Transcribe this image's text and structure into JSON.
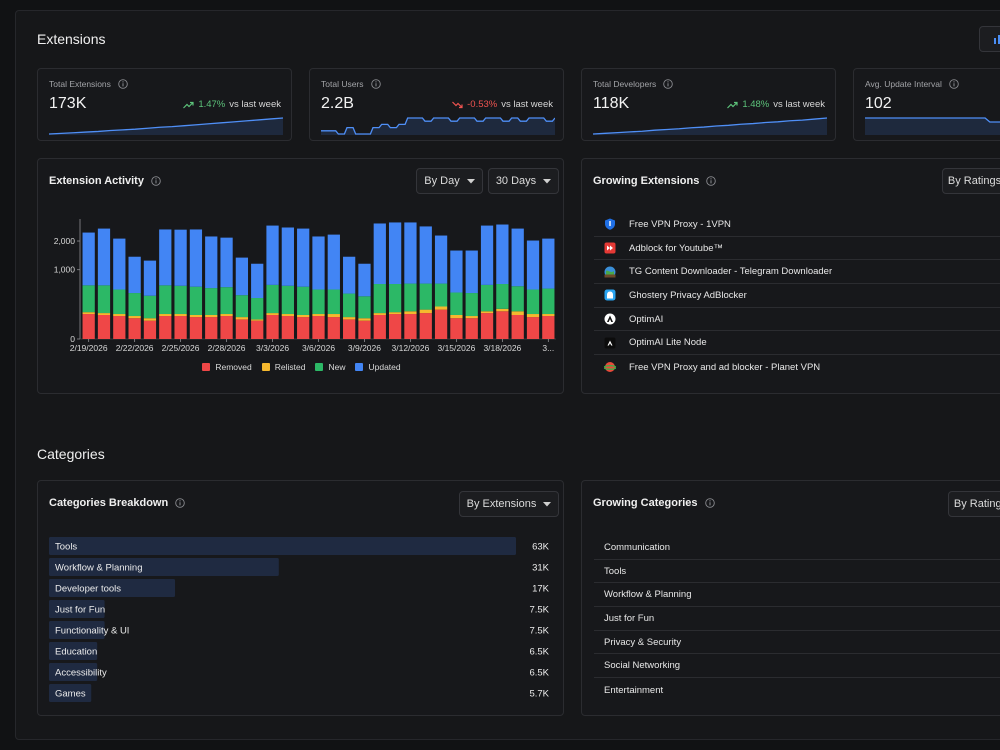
{
  "extensions": {
    "title": "Extensions",
    "stats": [
      {
        "label": "Total Extensions",
        "value": "173K",
        "change": "1.47%",
        "comparison": "vs last week",
        "trend": "up",
        "spark": [
          168.2,
          168.4,
          168.6,
          168.8,
          169.0,
          169.3,
          169.5,
          169.7,
          170.0,
          170.3,
          170.5,
          170.8,
          171.1,
          171.4,
          171.7,
          172.0,
          172.3,
          172.6,
          172.9,
          173.2
        ]
      },
      {
        "label": "Total Users",
        "value": "2.2B",
        "change": "-0.53%",
        "comparison": "vs last week",
        "trend": "down",
        "spark": [
          2.14,
          2.14,
          2.13,
          2.15,
          2.13,
          2.13,
          2.15,
          2.16,
          2.15,
          2.16,
          2.18,
          2.18,
          2.17,
          2.18,
          2.18,
          2.17,
          2.18,
          2.18,
          2.17,
          2.18,
          2.18,
          2.17,
          2.18,
          2.17,
          2.18,
          2.18,
          2.17,
          2.18
        ]
      },
      {
        "label": "Total Developers",
        "value": "118K",
        "change": "1.48%",
        "comparison": "vs last week",
        "trend": "up",
        "spark": [
          113.6,
          113.8,
          114.0,
          114.2,
          114.4,
          114.7,
          114.9,
          115.1,
          115.4,
          115.6,
          115.9,
          116.1,
          116.4,
          116.6,
          116.9,
          117.1,
          117.4,
          117.6,
          117.9,
          118.2
        ]
      },
      {
        "label": "Avg. Update Interval",
        "value": "102",
        "spark": [
          102,
          102,
          102,
          102,
          102,
          102,
          102,
          102,
          101,
          101,
          101.5,
          100,
          100,
          99,
          99.5,
          98
        ]
      }
    ],
    "activity": {
      "title": "Extension Activity",
      "controls": [
        "By Day",
        "30 Days"
      ],
      "chart": {
        "type": "bar",
        "stacked": true,
        "yscale": "sqrt",
        "ylim": [
          0,
          3000
        ],
        "yticks": [
          0,
          {
            "value": 1000,
            "label": "1,000"
          },
          {
            "value": 2000,
            "label": "2,000"
          }
        ],
        "categories": [
          "2/19/2026",
          null,
          null,
          "2/22/2026",
          null,
          null,
          "2/25/2026",
          null,
          null,
          "2/28/2026",
          null,
          null,
          "3/3/2026",
          null,
          null,
          "3/6/2026",
          null,
          null,
          "3/9/2026",
          null,
          null,
          "3/12/2026",
          null,
          null,
          "3/15/2026",
          null,
          null,
          "3/18/2026",
          null,
          null,
          "3..."
        ],
        "series": [
          {
            "name": "Removed",
            "color": "#ef4747",
            "values": [
              130,
              120,
              110,
              90,
              70,
              110,
              110,
              100,
              100,
              110,
              80,
              70,
              120,
              110,
              100,
              110,
              100,
              80,
              70,
              120,
              130,
              130,
              140,
              180,
              90,
              90,
              140,
              160,
              120,
              100,
              110
            ]
          },
          {
            "name": "Relisted",
            "color": "#f5b82e",
            "values": [
              20,
              20,
              20,
              20,
              20,
              20,
              20,
              20,
              20,
              20,
              20,
              10,
              20,
              20,
              20,
              20,
              30,
              20,
              20,
              20,
              20,
              30,
              40,
              40,
              30,
              20,
              20,
              30,
              40,
              30,
              20
            ]
          },
          {
            "name": "New",
            "color": "#2cb866",
            "values": [
              450,
              460,
              380,
              330,
              300,
              470,
              460,
              450,
              420,
              430,
              300,
              270,
              470,
              460,
              450,
              380,
              380,
              330,
              290,
              490,
              480,
              480,
              460,
              420,
              330,
              330,
              450,
              440,
              420,
              380,
              400
            ]
          },
          {
            "name": "Updated",
            "color": "#4285f4",
            "values": [
              1760,
              1940,
              1590,
              970,
              890,
              1900,
              1900,
              1930,
              1650,
              1580,
              980,
              830,
              2070,
              2000,
              1970,
              1680,
              1760,
              980,
              800,
              2150,
              2200,
              2190,
              2000,
              1590,
              1180,
              1190,
              2070,
              2100,
              1960,
              1510,
              1570
            ]
          }
        ]
      }
    },
    "growing": {
      "title": "Growing Extensions",
      "control": "By Ratings",
      "items": [
        "Free VPN Proxy - 1VPN",
        "Adblock for Youtube™",
        "TG Content Downloader - Telegram Downloader",
        "Ghostery Privacy AdBlocker",
        "OptimAI",
        "OptimAI Lite Node",
        "Free VPN Proxy and ad blocker - Planet VPN"
      ]
    }
  },
  "categories": {
    "title": "Categories",
    "breakdown": {
      "title": "Categories Breakdown",
      "control": "By Extensions",
      "items": [
        {
          "name": "Tools",
          "value": 63000,
          "value_label": "63K"
        },
        {
          "name": "Workflow & Planning",
          "value": 31000,
          "value_label": "31K"
        },
        {
          "name": "Developer tools",
          "value": 17000,
          "value_label": "17K"
        },
        {
          "name": "Just for Fun",
          "value": 7500,
          "value_label": "7.5K"
        },
        {
          "name": "Functionality & UI",
          "value": 7500,
          "value_label": "7.5K"
        },
        {
          "name": "Education",
          "value": 6500,
          "value_label": "6.5K"
        },
        {
          "name": "Accessibility",
          "value": 6500,
          "value_label": "6.5K"
        },
        {
          "name": "Games",
          "value": 5700,
          "value_label": "5.7K"
        }
      ]
    },
    "growing": {
      "title": "Growing Categories",
      "control": "By Ratings",
      "items": [
        "Communication",
        "Tools",
        "Workflow & Planning",
        "Just for Fun",
        "Privacy & Security",
        "Social Networking",
        "Entertainment"
      ]
    }
  }
}
